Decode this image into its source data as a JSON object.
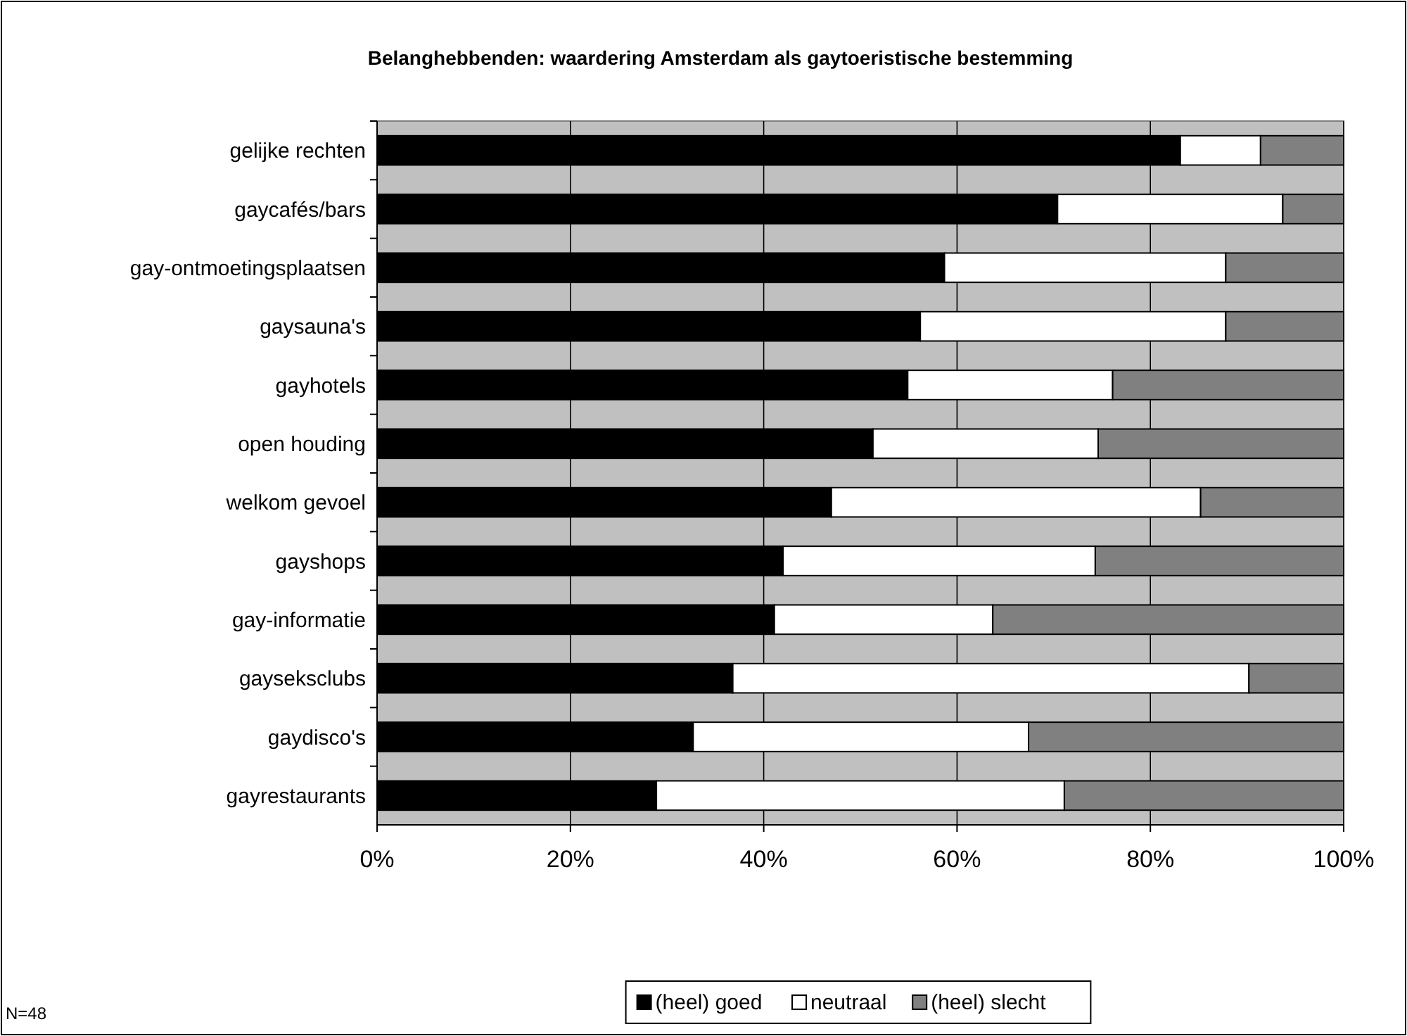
{
  "chart_data": {
    "type": "bar",
    "orientation": "horizontal",
    "stacked": true,
    "title": "Belanghebbenden: waardering Amsterdam als gaytoeristische bestemming",
    "categories": [
      "gelijke rechten",
      "gaycafés/bars",
      "gay-ontmoetingsplaatsen",
      "gaysauna's",
      "gayhotels",
      "open houding",
      "welkom gevoel",
      "gayshops",
      "gay-informatie",
      "gayseksclubs",
      "gaydisco's",
      "gayrestaurants"
    ],
    "series": [
      {
        "name": "(heel) goed",
        "color": "#000000",
        "values": [
          83.1,
          70.4,
          58.7,
          56.2,
          54.9,
          51.3,
          47.0,
          42.0,
          41.1,
          36.8,
          32.7,
          28.9
        ]
      },
      {
        "name": "neutraal",
        "color": "#ffffff",
        "values": [
          8.3,
          23.3,
          29.1,
          31.6,
          21.2,
          23.3,
          38.2,
          32.3,
          22.6,
          53.4,
          34.7,
          42.2
        ]
      },
      {
        "name": "(heel) slecht",
        "color": "#808080",
        "values": [
          8.6,
          6.3,
          12.2,
          12.2,
          23.9,
          25.4,
          14.8,
          25.7,
          36.3,
          9.8,
          32.6,
          28.9
        ]
      }
    ],
    "xlim": [
      0,
      100
    ],
    "xticks": [
      {
        "value": 0,
        "label": "0%"
      },
      {
        "value": 20,
        "label": "20%"
      },
      {
        "value": 40,
        "label": "40%"
      },
      {
        "value": 60,
        "label": "60%"
      },
      {
        "value": 80,
        "label": "80%"
      },
      {
        "value": 100,
        "label": "100%"
      }
    ],
    "grid": "x",
    "legend": "bottom",
    "annotations": [
      "N=48"
    ]
  }
}
